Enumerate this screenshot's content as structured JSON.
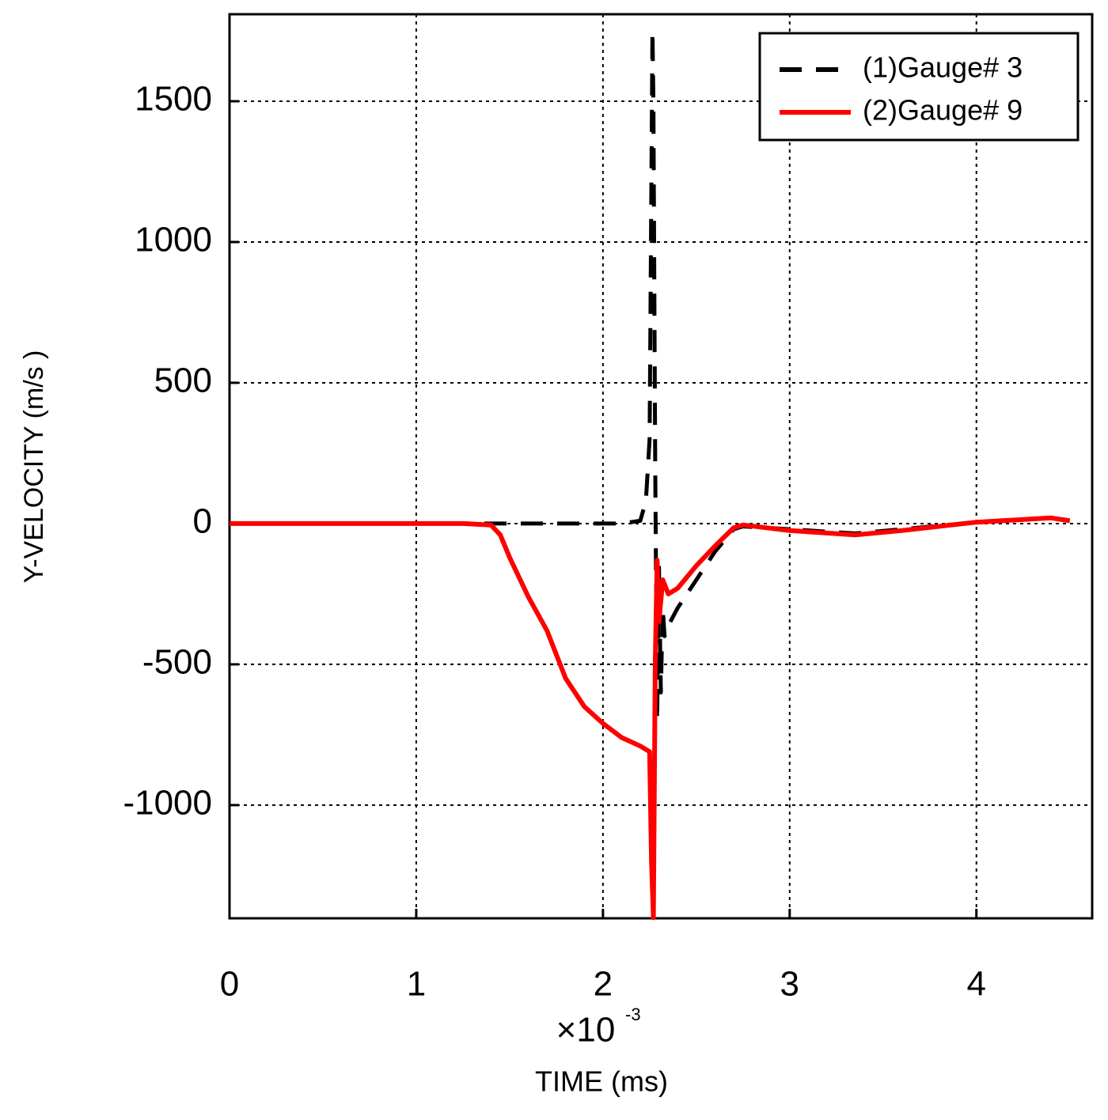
{
  "chart_data": {
    "type": "line",
    "xlabel": "TIME (ms)",
    "ylabel": "Y-VELOCITY (m/s )",
    "x_multiplier": "×10",
    "x_multiplier_exponent": "-3",
    "xlim": [
      0,
      4.62
    ],
    "xticks": [
      0,
      1,
      2,
      3,
      4
    ],
    "ylim": [
      -1402,
      1809
    ],
    "yticks": [
      -1000,
      -500,
      0,
      500,
      1000,
      1500
    ],
    "grid": true,
    "legend": "upper right",
    "series": [
      {
        "name": "(1)Gauge# 3",
        "color": "#000000",
        "linestyle": "dashed",
        "x": [
          0,
          1.4,
          2.1,
          2.2,
          2.23,
          2.25,
          2.265,
          2.27,
          2.28,
          2.29,
          2.3,
          2.31,
          2.32,
          2.33,
          2.36,
          2.4,
          2.5,
          2.6,
          2.7,
          2.75,
          3.0,
          3.35,
          3.6,
          4.0,
          4.4,
          4.5
        ],
        "values": [
          0,
          0,
          0,
          10,
          80,
          300,
          1750,
          1500,
          200,
          -700,
          -150,
          -600,
          -300,
          -400,
          -350,
          -300,
          -200,
          -100,
          -20,
          -10,
          -20,
          -35,
          -20,
          5,
          20,
          10
        ]
      },
      {
        "name": "(2)Gauge# 9",
        "color": "#ff0000",
        "linestyle": "solid",
        "x": [
          0,
          1.25,
          1.4,
          1.45,
          1.5,
          1.6,
          1.7,
          1.8,
          1.9,
          2.0,
          2.1,
          2.2,
          2.25,
          2.26,
          2.27,
          2.28,
          2.29,
          2.3,
          2.32,
          2.35,
          2.4,
          2.5,
          2.6,
          2.7,
          2.75,
          3.0,
          3.35,
          3.6,
          4.0,
          4.4,
          4.5
        ],
        "values": [
          0,
          0,
          -5,
          -40,
          -120,
          -260,
          -380,
          -550,
          -650,
          -710,
          -760,
          -790,
          -810,
          -1200,
          -1400,
          -500,
          -130,
          -350,
          -200,
          -250,
          -230,
          -150,
          -80,
          -15,
          -5,
          -25,
          -40,
          -25,
          5,
          20,
          10
        ]
      }
    ]
  }
}
